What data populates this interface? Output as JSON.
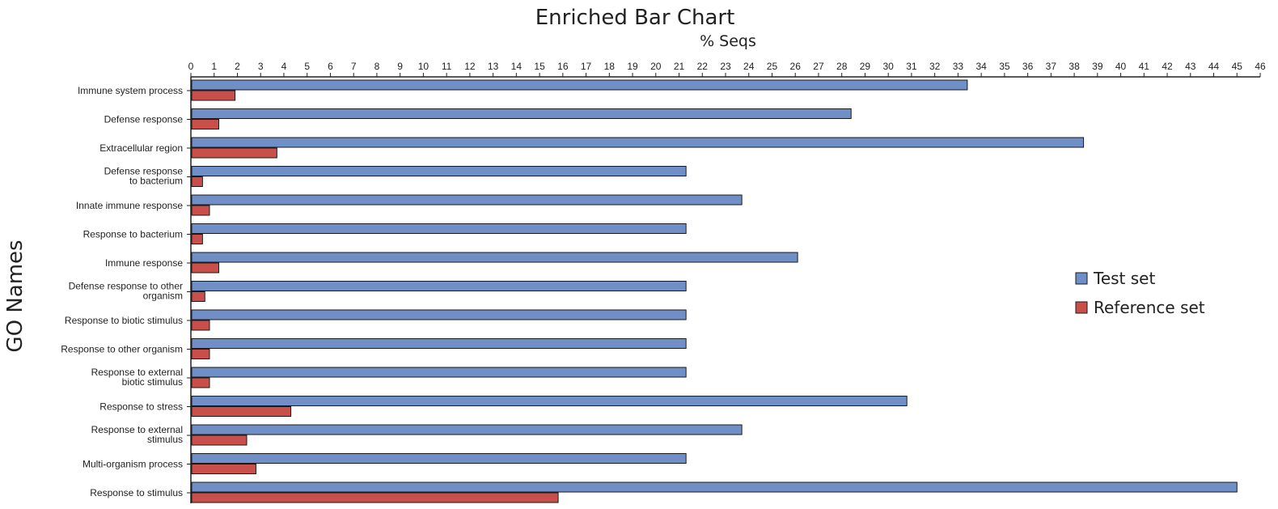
{
  "chart_data": {
    "type": "bar",
    "orientation": "horizontal",
    "title": "Enriched Bar Chart",
    "xlabel": "% Seqs",
    "ylabel": "GO Names",
    "x_ticks": [
      "0",
      "1",
      "2",
      "3",
      "4",
      "5",
      "6",
      "7",
      "8",
      "9",
      "10",
      "11",
      "12",
      "13",
      "14",
      "15",
      "16",
      "17",
      "18",
      "19",
      "20",
      "21",
      "22",
      "23",
      "24",
      "25",
      "26",
      "27",
      "28",
      "29",
      "30",
      "31",
      "32",
      "33",
      "34",
      "35",
      "36",
      "37",
      "38",
      "39",
      "40",
      "41",
      "42",
      "43",
      "44",
      "45",
      "46"
    ],
    "legend_position": "right",
    "categories": [
      "Immune system process",
      "Defense response",
      "Extracellular region",
      "Defense response\nto bacterium",
      "Innate immune response",
      "Response to bacterium",
      "Immune response",
      "Defense response to other\norganism",
      "Response to biotic stimulus",
      "Response to other organism",
      "Response to external\nbiotic stimulus",
      "Response to stress",
      "Response to external\nstimulus",
      "Multi-organism process",
      "Response to stimulus"
    ],
    "series": [
      {
        "name": "Test set",
        "color": "#6f8fc6",
        "values": [
          33.4,
          28.4,
          38.4,
          21.3,
          23.7,
          21.3,
          26.1,
          21.3,
          21.3,
          21.3,
          21.3,
          30.8,
          23.7,
          21.3,
          45.0
        ]
      },
      {
        "name": "Reference set",
        "color": "#c9504a",
        "values": [
          1.9,
          1.2,
          3.7,
          0.5,
          0.8,
          0.5,
          1.2,
          0.6,
          0.8,
          0.8,
          0.8,
          4.3,
          2.4,
          2.8,
          15.8
        ]
      }
    ]
  }
}
